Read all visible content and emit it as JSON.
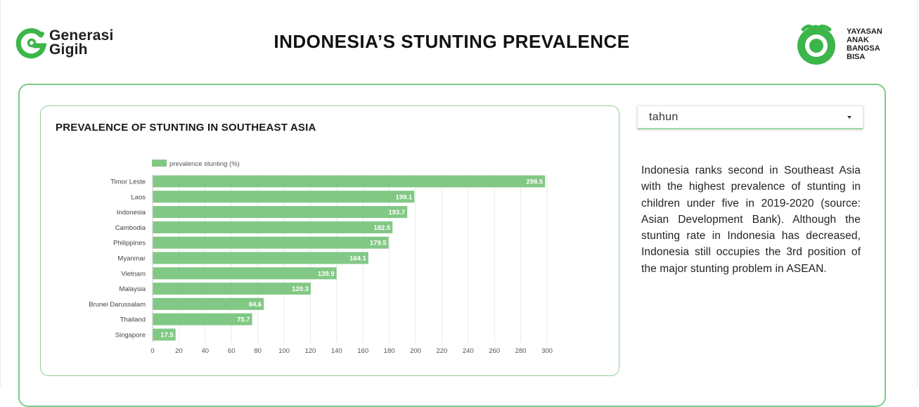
{
  "header": {
    "brand_left_line1": "Generasi",
    "brand_left_line2": "Gigih",
    "title": "INDONESIA’S STUNTING PREVALENCE",
    "brand_right_lines": [
      "YAYASAN",
      "ANAK",
      "BANGSA",
      "BISA"
    ]
  },
  "colors": {
    "accent": "#7dc683",
    "bar": "#82c885",
    "border": "#7ecb85",
    "grid": "#e8e8e8"
  },
  "chart_card": {
    "title": "PREVALENCE OF STUNTING IN SOUTHEAST ASIA"
  },
  "filter": {
    "label": "tahun",
    "icon": "caret-down-icon"
  },
  "description": "Indonesia ranks second in Southeast Asia with the highest prevalence of stunting in children under five in 2019-2020 (source: Asian Development Bank). Although the stunting rate in Indonesia has decreased, Indonesia still occupies the 3rd position of the major stunting problem in ASEAN.",
  "chart_data": {
    "type": "bar",
    "orientation": "horizontal",
    "title": "PREVALENCE OF STUNTING IN SOUTHEAST ASIA",
    "categories": [
      "Timor Leste",
      "Laos",
      "Indonesia",
      "Cambodia",
      "Philippines",
      "Myanmar",
      "Vietnam",
      "Malaysia",
      "Brunei Darussalam",
      "Thailand",
      "Singapore"
    ],
    "series": [
      {
        "name": "prevalence stunting (%)",
        "values": [
          298.5,
          199.1,
          193.7,
          182.5,
          179.5,
          164.1,
          139.9,
          120.3,
          84.6,
          75.7,
          17.5
        ]
      }
    ],
    "data_labels": [
      "298.5",
      "199.1",
      "193.7",
      "182.5",
      "179.5",
      "164.1",
      "139.9",
      "120.3",
      "84.6",
      "75.7",
      "17.5"
    ],
    "xlim": [
      0,
      300
    ],
    "xticks": [
      0,
      20,
      40,
      60,
      80,
      100,
      120,
      140,
      160,
      180,
      200,
      220,
      240,
      260,
      280,
      300
    ],
    "grid": true,
    "legend_position": "top-left"
  }
}
